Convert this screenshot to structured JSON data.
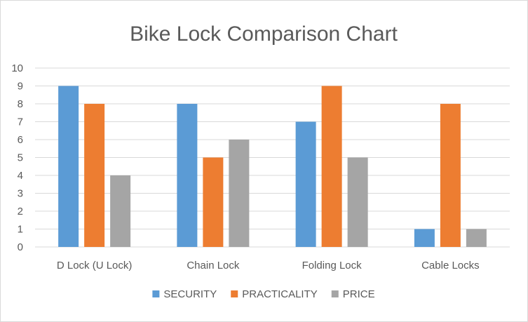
{
  "chart_data": {
    "type": "bar",
    "title": "Bike Lock Comparison Chart",
    "xlabel": "",
    "ylabel": "",
    "ylim": [
      0,
      10
    ],
    "yticks": [
      "0",
      "1",
      "2",
      "3",
      "4",
      "5",
      "6",
      "7",
      "8",
      "9",
      "10"
    ],
    "grid": true,
    "legend_position": "bottom",
    "categories": [
      "D Lock (U Lock)",
      "Chain Lock",
      "Folding Lock",
      "Cable Locks"
    ],
    "series": [
      {
        "name": "SECURITY",
        "color": "#5b9bd5",
        "values": [
          9,
          8,
          7,
          1
        ]
      },
      {
        "name": "PRACTICALITY",
        "color": "#ed7d31",
        "values": [
          8,
          5,
          9,
          8
        ]
      },
      {
        "name": "PRICE",
        "color": "#a5a5a5",
        "values": [
          4,
          6,
          5,
          1
        ]
      }
    ]
  }
}
